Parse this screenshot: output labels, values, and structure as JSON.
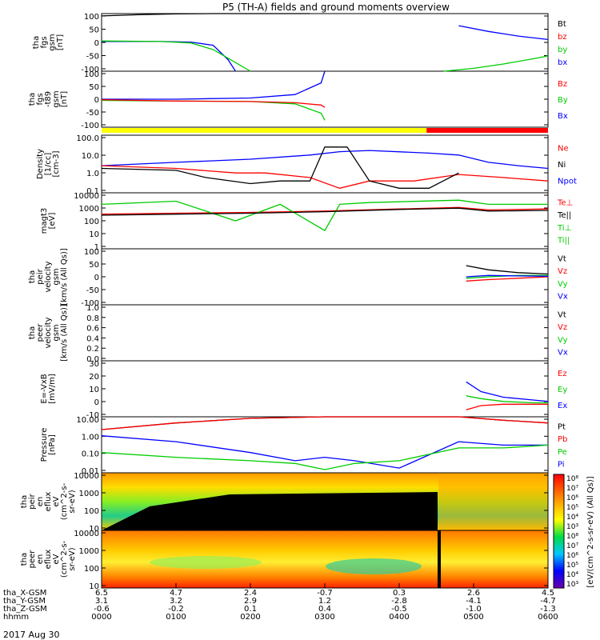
{
  "title": "P5 (TH-A) fields and ground moments overview",
  "date_label": "2017 Aug 30",
  "panels": [
    {
      "id": "fgs",
      "ylabel": [
        "tha",
        "fgs",
        "gsm",
        "[nT]"
      ],
      "yticks": [
        "100",
        "50",
        "0",
        "-50",
        "-100"
      ],
      "ylim": [
        -100,
        100
      ],
      "legend": [
        {
          "text": "Bt",
          "color": "#000000"
        },
        {
          "text": "bz",
          "color": "#ff0000"
        },
        {
          "text": "by",
          "color": "#00cc00"
        },
        {
          "text": "bx",
          "color": "#0000ff"
        }
      ]
    },
    {
      "id": "fgs_t89",
      "ylabel": [
        "tha",
        "fgs",
        "-t89",
        "gsm",
        "[nT]"
      ],
      "yticks": [
        "100",
        "50",
        "0",
        "-50",
        "-100"
      ],
      "ylim": [
        -120,
        120
      ],
      "legend": [
        {
          "text": "Bz",
          "color": "#ff0000"
        },
        {
          "text": "By",
          "color": "#00cc00"
        },
        {
          "text": "Bx",
          "color": "#0000ff"
        }
      ]
    },
    {
      "id": "density",
      "ylabel": [
        "Density",
        "[1/cc]",
        "[cm-3]"
      ],
      "yticks": [
        "100.0",
        "10.0",
        "1.0",
        "0.1"
      ],
      "ylim": [
        0.05,
        300
      ],
      "log": true,
      "legend": [
        {
          "text": "Ne",
          "color": "#ff0000"
        },
        {
          "text": "Ni",
          "color": "#000000"
        },
        {
          "text": "Npot",
          "color": "#0000ff"
        }
      ]
    },
    {
      "id": "temp",
      "ylabel": [
        "magt3",
        "[eV]"
      ],
      "yticks": [
        "10000",
        "1000",
        "100",
        "10",
        "1"
      ],
      "ylim": [
        1,
        10000
      ],
      "log": true,
      "legend": [
        {
          "text": "Te⊥",
          "color": "#ff0000"
        },
        {
          "text": "Te||",
          "color": "#000000"
        },
        {
          "text": "Ti⊥",
          "color": "#00cc00"
        },
        {
          "text": "Ti||",
          "color": "#00cc00"
        }
      ]
    },
    {
      "id": "peir_vel",
      "ylabel": [
        "tha",
        "peir",
        "velocity",
        "gsm",
        "[km/s (All Qs)]"
      ],
      "yticks": [
        "100",
        "50",
        "0",
        "-50",
        "-100"
      ],
      "ylim": [
        -100,
        100
      ],
      "legend": [
        {
          "text": "Vt",
          "color": "#000000"
        },
        {
          "text": "Vz",
          "color": "#ff0000"
        },
        {
          "text": "Vy",
          "color": "#00cc00"
        },
        {
          "text": "Vx",
          "color": "#0000ff"
        }
      ]
    },
    {
      "id": "peer_vel",
      "ylabel": [
        "tha",
        "peer",
        "velocity",
        "gsm",
        "[km/s (All Qs)]"
      ],
      "yticks": [
        "1.0",
        "0.8",
        "0.6",
        "0.4",
        "0.2",
        "0.0"
      ],
      "ylim": [
        0,
        1
      ],
      "legend": [
        {
          "text": "Vt",
          "color": "#000000"
        },
        {
          "text": "Vz",
          "color": "#ff0000"
        },
        {
          "text": "Vy",
          "color": "#00cc00"
        },
        {
          "text": "Vx",
          "color": "#0000ff"
        }
      ]
    },
    {
      "id": "efield",
      "ylabel": [
        "E=-VxB",
        "[mV/m]"
      ],
      "yticks": [
        "30",
        "20",
        "10",
        "0",
        "-10"
      ],
      "ylim": [
        -10,
        30
      ],
      "legend": [
        {
          "text": "Ez",
          "color": "#ff0000"
        },
        {
          "text": "Ey",
          "color": "#00cc00"
        },
        {
          "text": "Ex",
          "color": "#0000ff"
        }
      ]
    },
    {
      "id": "pressure",
      "ylabel": [
        "Pressure",
        "[nPa]"
      ],
      "yticks": [
        "10.00",
        "1.00",
        "0.10",
        "0.01"
      ],
      "ylim": [
        0.005,
        20
      ],
      "log": true,
      "legend": [
        {
          "text": "Pt",
          "color": "#000000"
        },
        {
          "text": "Pb",
          "color": "#ff0000"
        },
        {
          "text": "Pe",
          "color": "#00cc00"
        },
        {
          "text": "Pi",
          "color": "#0000ff"
        }
      ]
    },
    {
      "id": "peir_spec",
      "ylabel": [
        "tha",
        "peir",
        "en",
        "eflux",
        "eV",
        "(cm^2-s-",
        "sr-eV)"
      ],
      "yticks": [
        "10000",
        "1000",
        "100",
        "10"
      ]
    },
    {
      "id": "peer_spec",
      "ylabel": [
        "tha",
        "peer",
        "en",
        "eflux",
        "eV",
        "(cm^2-s-",
        "sr-eV)"
      ],
      "yticks": [
        "10000",
        "1000",
        "100",
        "10"
      ]
    }
  ],
  "colorbar": {
    "ticks": [
      "10⁸",
      "10⁷",
      "10⁶",
      "10⁵",
      "10⁴",
      "10³",
      "10⁸",
      "10⁷",
      "10⁶",
      "10⁵",
      "10⁴",
      "10³"
    ],
    "label": "[eV/(cm^2-s-sr-eV) (All Qs)]"
  },
  "xaxis": {
    "row_labels": [
      "tha_X-GSM",
      "tha_Y-GSM",
      "tha_Z-GSM",
      "hhmm"
    ],
    "columns": [
      {
        "vals": [
          "6.5",
          "3.1",
          "-0.6",
          "0000"
        ]
      },
      {
        "vals": [
          "4.7",
          "3.2",
          "-0.2",
          "0100"
        ]
      },
      {
        "vals": [
          "2.4",
          "2.9",
          "0.1",
          "0200"
        ]
      },
      {
        "vals": [
          "-0.7",
          "1.2",
          "0.4",
          "0300"
        ]
      },
      {
        "vals": [
          "0.3",
          "-2.8",
          "-0.5",
          "0400"
        ]
      },
      {
        "vals": [
          "2.6",
          "-4.1",
          "-1.0",
          "0500"
        ]
      },
      {
        "vals": [
          "4.5",
          "-4.7",
          "-1.3",
          "0600"
        ]
      }
    ]
  },
  "mode_bar": {
    "segments": [
      {
        "from": 0,
        "to": 0.728,
        "color": "#ffff00"
      },
      {
        "from": 0.728,
        "to": 1,
        "color": "#ff0000"
      }
    ]
  },
  "chart_data": {
    "type": "line",
    "title": "P5 (TH-A) fields and ground moments overview",
    "xlabel": "hhmm",
    "x_range": [
      "0000",
      "0600"
    ],
    "panels": [
      {
        "name": "tha fgs gsm [nT]",
        "ylim": [
          -100,
          100
        ],
        "series": [
          {
            "name": "Bt",
            "x": [
              0,
              0.5,
              1,
              1.5,
              2,
              2.4,
              2.5,
              2.8
            ],
            "values": [
              92,
              96,
              99,
              100,
              100,
              100,
              100,
              100
            ]
          },
          {
            "name": "bx",
            "x": [
              0,
              0.8,
              1.2,
              1.5,
              1.7,
              1.8
            ],
            "values": [
              3,
              3,
              1,
              -10,
              -60,
              -100
            ]
          },
          {
            "name": "by",
            "x": [
              0,
              0.8,
              1.2,
              1.5,
              1.8,
              2.0
            ],
            "values": [
              5,
              3,
              -2,
              -25,
              -70,
              -100
            ]
          },
          {
            "name": "bx",
            "x": [
              4.8,
              5.2,
              5.6,
              6.0
            ],
            "values": [
              58,
              38,
              22,
              10
            ]
          },
          {
            "name": "by",
            "x": [
              4.6,
              5.0,
              5.4,
              5.8,
              6.0
            ],
            "values": [
              -100,
              -90,
              -75,
              -57,
              -47
            ]
          }
        ]
      },
      {
        "name": "tha fgs-t89 gsm [nT]",
        "ylim": [
          -120,
          120
        ],
        "series": [
          {
            "name": "Bx",
            "x": [
              0,
              1,
              2,
              2.6,
              2.95,
              3.0
            ],
            "values": [
              0,
              0,
              5,
              20,
              70,
              120
            ]
          },
          {
            "name": "By",
            "x": [
              0,
              1,
              2,
              2.6,
              2.95,
              3.0
            ],
            "values": [
              -5,
              -8,
              -10,
              -20,
              -60,
              -90
            ]
          },
          {
            "name": "Bz",
            "x": [
              0,
              1,
              2,
              2.6,
              2.95,
              3.0
            ],
            "values": [
              -2,
              -8,
              -10,
              -15,
              -25,
              -35
            ]
          }
        ]
      },
      {
        "name": "Density [1/cc]",
        "ylim": [
          0.05,
          300
        ],
        "log": true,
        "series": [
          {
            "name": "Npot",
            "x": [
              0,
              1,
              2,
              2.8,
              3.2,
              3.6,
              4.4,
              4.8,
              5.2,
              5.6,
              6.0
            ],
            "values": [
              3,
              5,
              8,
              15,
              25,
              30,
              20,
              15,
              5,
              3,
              2
            ]
          },
          {
            "name": "Ne",
            "x": [
              0,
              1,
              1.8,
              2.2,
              2.8,
              3.2,
              3.6,
              4.2,
              4.8,
              5.4,
              6.0
            ],
            "values": [
              3,
              2,
              1,
              1,
              0.5,
              0.1,
              0.3,
              0.3,
              0.8,
              0.5,
              0.3
            ]
          },
          {
            "name": "Ni",
            "x": [
              0,
              1,
              1.4,
              2.0,
              2.4,
              2.8,
              3.0,
              3.3,
              3.6,
              4.0,
              4.4,
              4.8
            ],
            "values": [
              2,
              1.5,
              0.5,
              0.2,
              0.3,
              0.3,
              50,
              50,
              0.3,
              0.1,
              0.1,
              1
            ]
          }
        ]
      },
      {
        "name": "magt3 [eV]",
        "ylim": [
          1,
          10000
        ],
        "log": true,
        "series": [
          {
            "name": "Te⊥",
            "x": [
              0,
              1,
              2,
              3,
              4,
              4.8,
              5.2,
              6.0
            ],
            "values": [
              300,
              350,
              400,
              500,
              700,
              900,
              600,
              700
            ]
          },
          {
            "name": "Ti⊥",
            "x": [
              0,
              1,
              1.8,
              2.4,
              3.0,
              3.2,
              3.6,
              4.8,
              5.2,
              6.0
            ],
            "values": [
              1500,
              2500,
              100,
              1500,
              20,
              1500,
              2000,
              3000,
              1500,
              1500
            ]
          },
          {
            "name": "Te||",
            "x": [
              0,
              1,
              2,
              3,
              4,
              4.8,
              5.2,
              6.0
            ],
            "values": [
              250,
              300,
              350,
              450,
              650,
              800,
              500,
              550
            ]
          }
        ]
      },
      {
        "name": "peir velocity gsm [km/s]",
        "ylim": [
          -100,
          100
        ],
        "series": [
          {
            "name": "Vt",
            "x": [
              4.9,
              5.2,
              5.6,
              6.0
            ],
            "values": [
              40,
              25,
              15,
              10
            ]
          },
          {
            "name": "Vy",
            "x": [
              4.9,
              5.2,
              5.6,
              6.0
            ],
            "values": [
              -5,
              0,
              5,
              5
            ]
          },
          {
            "name": "Vz",
            "x": [
              4.9,
              5.2,
              5.6,
              6.0
            ],
            "values": [
              -15,
              -10,
              -5,
              0
            ]
          },
          {
            "name": "Vx",
            "x": [
              4.9,
              5.2,
              5.6,
              6.0
            ],
            "values": [
              0,
              5,
              3,
              2
            ]
          }
        ]
      },
      {
        "name": "E=-VxB [mV/m]",
        "ylim": [
          -10,
          30
        ],
        "series": [
          {
            "name": "Ex",
            "x": [
              4.9,
              5.1,
              5.4,
              5.8,
              6.0
            ],
            "values": [
              15,
              8,
              4,
              2,
              1
            ]
          },
          {
            "name": "Ey",
            "x": [
              4.9,
              5.1,
              5.4,
              5.8,
              6.0
            ],
            "values": [
              5,
              3,
              1,
              0,
              0
            ]
          },
          {
            "name": "Ez",
            "x": [
              4.9,
              5.1,
              5.4,
              5.8,
              6.0
            ],
            "values": [
              -5,
              -2,
              -1,
              -1,
              -1
            ]
          }
        ]
      },
      {
        "name": "Pressure [nPa]",
        "ylim": [
          0.005,
          20
        ],
        "log": true,
        "series": [
          {
            "name": "Pt",
            "x": [
              0,
              1,
              2,
              3,
              4,
              4.8,
              5.4,
              6.0
            ],
            "values": [
              3,
              8,
              16,
              20,
              20,
              20,
              12,
              8
            ]
          },
          {
            "name": "Pb",
            "x": [
              0,
              1,
              2,
              3,
              4,
              4.8,
              5.4,
              6.0
            ],
            "values": [
              3,
              8,
              16,
              20,
              20,
              20,
              12,
              8
            ]
          },
          {
            "name": "Pi",
            "x": [
              0,
              1,
              2,
              2.6,
              3.0,
              3.4,
              4.0,
              4.8,
              5.4,
              6.0
            ],
            "values": [
              1.2,
              0.5,
              0.1,
              0.03,
              0.05,
              0.03,
              0.01,
              0.5,
              0.3,
              0.3
            ]
          },
          {
            "name": "Pe",
            "x": [
              0,
              1,
              2,
              2.6,
              3.0,
              3.4,
              4.0,
              4.8,
              5.4,
              6.0
            ],
            "values": [
              0.1,
              0.05,
              0.03,
              0.02,
              0.008,
              0.02,
              0.03,
              0.2,
              0.2,
              0.3
            ]
          }
        ]
      }
    ]
  }
}
